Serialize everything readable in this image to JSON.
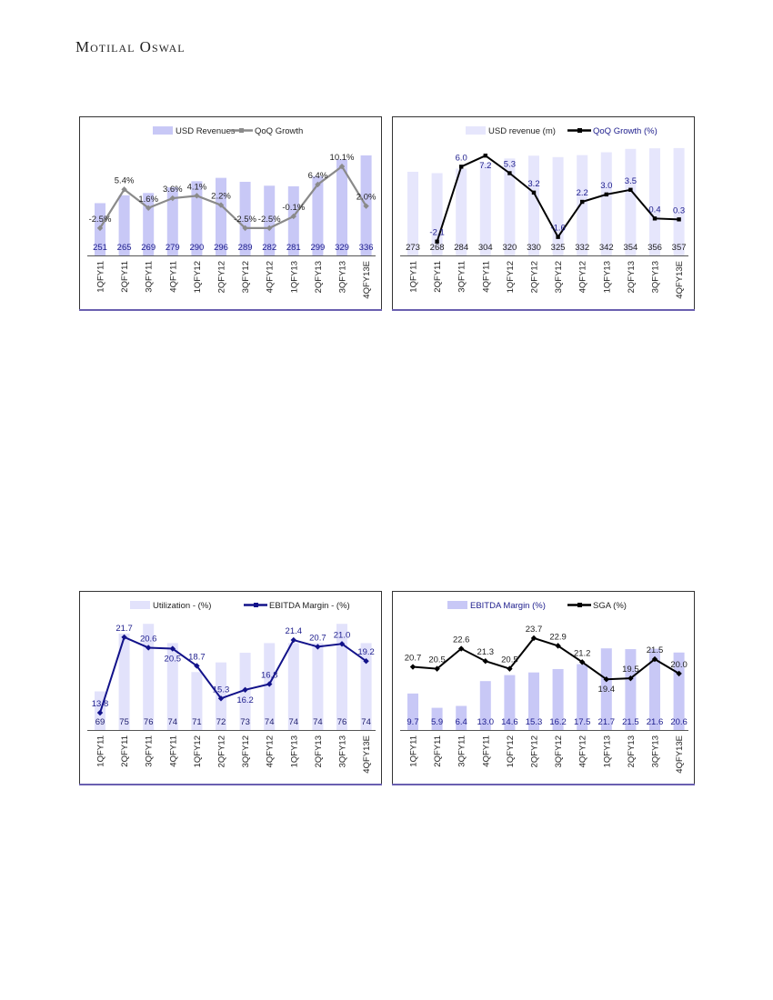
{
  "header": {
    "brand": "Motilal Oswal"
  },
  "chart_data": [
    {
      "type": "bar+line",
      "legend": [
        "USD Revenues",
        "QoQ Growth"
      ],
      "categories": [
        "1QFY11",
        "2QFY11",
        "3QFY11",
        "4QFY11",
        "1QFY12",
        "2QFY12",
        "3QFY12",
        "4QFY12",
        "1QFY13",
        "2QFY13",
        "3QFY13",
        "4QFY13E"
      ],
      "bars": {
        "name": "USD Revenues",
        "values": [
          251,
          265,
          269,
          279,
          290,
          296,
          289,
          282,
          281,
          299,
          329,
          336
        ],
        "labels": [
          "251",
          "265",
          "269",
          "279",
          "290",
          "296",
          "289",
          "282",
          "281",
          "299",
          "329",
          "336"
        ],
        "ylim": [
          158,
          352
        ]
      },
      "line": {
        "name": "QoQ Growth",
        "values": [
          -2.5,
          5.4,
          1.6,
          3.6,
          4.1,
          2.2,
          -2.5,
          -2.5,
          -0.1,
          6.4,
          10.1,
          2.0
        ],
        "labels": [
          "-2.5%",
          "5.4%",
          "1.6%",
          "3.6%",
          "4.1%",
          "2.2%",
          "-2.5%",
          "-2.5%",
          "-0.1%",
          "6.4%",
          "10.1%",
          "2.0%"
        ],
        "ylim": [
          -8.1,
          14.2
        ]
      },
      "colors": {
        "bar": "#c8c8f6",
        "line": "#8a8a8a",
        "bar_label": "#1c1c8c",
        "line_label": "#222222"
      }
    },
    {
      "type": "bar+line",
      "legend": [
        "USD revenue (m)",
        "QoQ Growth (%)"
      ],
      "categories": [
        "1QFY11",
        "2QFY11",
        "3QFY11",
        "4QFY11",
        "1QFY12",
        "2QFY12",
        "3QFY12",
        "4QFY12",
        "1QFY13",
        "2QFY13",
        "3QFY13",
        "4QFY13E"
      ],
      "bars": {
        "name": "USD revenue (m)",
        "values": [
          273,
          268,
          284,
          304,
          320,
          330,
          325,
          332,
          342,
          354,
          356,
          357
        ],
        "labels": [
          "273",
          "268",
          "284",
          "304",
          "320",
          "330",
          "325",
          "332",
          "342",
          "354",
          "356",
          "357"
        ],
        "ylim": [
          -24,
          363
        ]
      },
      "line": {
        "name": "QoQ Growth (%)",
        "values": [
          null,
          -2.1,
          6.0,
          7.2,
          5.3,
          3.2,
          -1.6,
          2.2,
          3.0,
          3.5,
          0.4,
          0.3
        ],
        "labels": [
          "",
          "-2.1",
          "6.0",
          "7.2",
          "5.3",
          "3.2",
          "-1.6",
          "2.2",
          "3.0",
          "3.5",
          "0.4",
          "0.3"
        ],
        "ylim": [
          -3.6,
          8.2
        ]
      },
      "colors": {
        "bar": "#e6e6fc",
        "line": "#000000",
        "bar_label": "#222222",
        "line_label": "#1c1c8c"
      }
    },
    {
      "type": "bar+line",
      "legend": [
        "Utilization - (%)",
        "EBITDA Margin - (%)"
      ],
      "categories": [
        "1QFY11",
        "2QFY11",
        "3QFY11",
        "4QFY11",
        "1QFY12",
        "2QFY12",
        "3QFY12",
        "4QFY12",
        "1QFY13",
        "2QFY13",
        "3QFY13",
        "4QFY13E"
      ],
      "bars": {
        "name": "Utilization - (%)",
        "values": [
          69,
          75,
          76,
          74,
          71,
          72,
          73,
          74,
          74,
          74,
          76,
          74
        ],
        "labels": [
          "69",
          "75",
          "76",
          "74",
          "71",
          "72",
          "73",
          "74",
          "74",
          "74",
          "76",
          "74"
        ],
        "ylim": [
          65,
          76.3
        ]
      },
      "line": {
        "name": "EBITDA Margin - (%)",
        "values": [
          13.8,
          21.7,
          20.6,
          20.5,
          18.7,
          15.3,
          16.2,
          16.8,
          21.4,
          20.7,
          21.0,
          19.2
        ],
        "labels": [
          "13.8",
          "21.7",
          "20.6",
          "20.5",
          "18.7",
          "15.3",
          "16.2",
          "16.8",
          "21.4",
          "20.7",
          "21.0",
          "19.2"
        ],
        "ylim": [
          12,
          23.4
        ]
      },
      "colors": {
        "bar": "#e2e2fb",
        "line": "#12128a",
        "bar_label": "#1c1c6c",
        "line_label": "#1c1c8c"
      }
    },
    {
      "type": "bar+line",
      "legend": [
        "EBITDA Margin (%)",
        "SGA (%)"
      ],
      "categories": [
        "1QFY11",
        "2QFY11",
        "3QFY11",
        "4QFY11",
        "1QFY12",
        "2QFY12",
        "3QFY12",
        "4QFY12",
        "1QFY13",
        "2QFY13",
        "3QFY13",
        "4QFY13E"
      ],
      "bars": {
        "name": "EBITDA Margin (%)",
        "values": [
          9.7,
          5.9,
          6.4,
          13.0,
          14.6,
          15.3,
          16.2,
          17.5,
          21.7,
          21.5,
          21.6,
          20.6
        ],
        "labels": [
          "9.7",
          "5.9",
          "6.4",
          "13.0",
          "14.6",
          "15.3",
          "16.2",
          "17.5",
          "21.7",
          "21.5",
          "21.6",
          "20.6"
        ],
        "ylim": [
          0,
          29
        ]
      },
      "line": {
        "name": "SGA (%)",
        "values": [
          20.7,
          20.5,
          22.6,
          21.3,
          20.5,
          23.7,
          22.9,
          21.2,
          19.4,
          19.5,
          21.5,
          20.0
        ],
        "labels": [
          "20.7",
          "20.5",
          "22.6",
          "21.3",
          "20.5",
          "23.7",
          "22.9",
          "21.2",
          "19.4",
          "19.5",
          "21.5",
          "20.0"
        ],
        "ylim": [
          14.1,
          25.5
        ]
      },
      "colors": {
        "bar": "#c8c8f6",
        "line": "#000000",
        "bar_label": "#1c1c8c",
        "line_label": "#222222"
      }
    }
  ]
}
